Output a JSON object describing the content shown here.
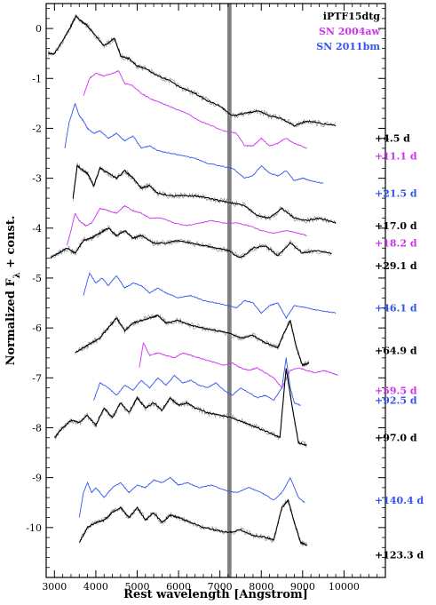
{
  "chart_data": {
    "type": "line",
    "xlabel": "Rest wavelength [Angstrom]",
    "ylabel": "Normalized F",
    "ylabel_sub": "λ",
    "ylabel_suffix": " + const.",
    "xlim": [
      2800,
      11000
    ],
    "ylim": [
      -11,
      0.5
    ],
    "x_ticks": [
      3000,
      4000,
      5000,
      6000,
      7000,
      8000,
      9000,
      10000
    ],
    "x_minor_step": 200,
    "y_ticks": [
      0,
      -1,
      -2,
      -3,
      -4,
      -5,
      -6,
      -7,
      -8,
      -9,
      -10
    ],
    "y_minor_step": 0.2,
    "grid": false,
    "shaded_band": {
      "x": [
        7180,
        7280
      ],
      "color": "#808080"
    },
    "legend_position": "top-right",
    "legend": [
      {
        "name": "iPTF15dtg",
        "color": "#000000"
      },
      {
        "name": "SN 2004aw",
        "color": "#cc33ee"
      },
      {
        "name": "SN 2011bm",
        "color": "#3355ee"
      }
    ],
    "series": [
      {
        "object": "iPTF15dtg",
        "epoch": "+4.5 d",
        "color": "#000000",
        "noisy": true,
        "x": [
          2850,
          3000,
          3200,
          3400,
          3520,
          3650,
          3800,
          4000,
          4200,
          4450,
          4600,
          4800,
          5000,
          5200,
          5500,
          5800,
          6100,
          6400,
          6700,
          7000,
          7300,
          7600,
          7900,
          8200,
          8500,
          8800,
          9100,
          9400,
          9800
        ],
        "y": [
          -0.5,
          -0.5,
          -0.25,
          0.05,
          0.25,
          0.15,
          0.05,
          -0.15,
          -0.35,
          -0.2,
          -0.55,
          -0.6,
          -0.75,
          -0.8,
          -0.95,
          -1.05,
          -1.2,
          -1.3,
          -1.45,
          -1.55,
          -1.75,
          -1.7,
          -1.65,
          -1.75,
          -1.8,
          -1.95,
          -1.85,
          -1.9,
          -1.95
        ],
        "label_y": -2.2
      },
      {
        "object": "SN 2004aw",
        "epoch": "+11.1 d",
        "color": "#cc33ee",
        "noisy": false,
        "x": [
          3700,
          3850,
          4000,
          4200,
          4400,
          4550,
          4700,
          4900,
          5100,
          5300,
          5600,
          5900,
          6200,
          6500,
          6800,
          7100,
          7400,
          7600,
          7800,
          8000,
          8200,
          8400,
          8600,
          8800,
          9100
        ],
        "y": [
          -1.35,
          -1.0,
          -0.9,
          -0.95,
          -0.9,
          -0.85,
          -1.1,
          -1.15,
          -1.3,
          -1.4,
          -1.5,
          -1.6,
          -1.7,
          -1.85,
          -1.95,
          -2.05,
          -2.1,
          -2.35,
          -2.35,
          -2.2,
          -2.35,
          -2.3,
          -2.2,
          -2.3,
          -2.4
        ],
        "label_y": -2.55
      },
      {
        "object": "SN 2011bm",
        "epoch": "+21.5 d",
        "color": "#3355ee",
        "noisy": false,
        "x": [
          3250,
          3350,
          3500,
          3600,
          3700,
          3800,
          3950,
          4100,
          4300,
          4500,
          4700,
          4900,
          5100,
          5300,
          5500,
          5800,
          6100,
          6400,
          6700,
          7000,
          7300,
          7600,
          7800,
          8000,
          8200,
          8400,
          8600,
          8800,
          9000,
          9200,
          9500
        ],
        "y": [
          -2.4,
          -1.9,
          -1.5,
          -1.75,
          -1.85,
          -2.0,
          -2.1,
          -2.05,
          -2.2,
          -2.1,
          -2.25,
          -2.15,
          -2.4,
          -2.35,
          -2.45,
          -2.5,
          -2.55,
          -2.6,
          -2.7,
          -2.75,
          -2.8,
          -3.0,
          -2.95,
          -2.75,
          -2.9,
          -2.95,
          -2.85,
          -3.05,
          -3.0,
          -3.05,
          -3.1
        ],
        "label_y": -3.3
      },
      {
        "object": "iPTF15dtg",
        "epoch": "+17.0 d",
        "color": "#000000",
        "noisy": true,
        "x": [
          3450,
          3550,
          3700,
          3800,
          3950,
          4100,
          4300,
          4500,
          4700,
          4900,
          5100,
          5300,
          5500,
          5800,
          6100,
          6400,
          6700,
          7000,
          7300,
          7600,
          7900,
          8200,
          8500,
          8800,
          9100,
          9400,
          9800
        ],
        "y": [
          -3.4,
          -2.75,
          -2.85,
          -2.9,
          -3.15,
          -2.8,
          -2.9,
          -3.0,
          -2.85,
          -3.0,
          -3.2,
          -3.15,
          -3.3,
          -3.35,
          -3.35,
          -3.35,
          -3.4,
          -3.45,
          -3.5,
          -3.55,
          -3.75,
          -3.8,
          -3.6,
          -3.8,
          -3.85,
          -3.8,
          -3.9
        ],
        "label_y": -3.95
      },
      {
        "object": "SN 2004aw",
        "epoch": "+18.2 d",
        "color": "#cc33ee",
        "noisy": false,
        "x": [
          3300,
          3400,
          3500,
          3600,
          3750,
          3900,
          4100,
          4300,
          4500,
          4700,
          4900,
          5100,
          5300,
          5600,
          5900,
          6200,
          6500,
          6800,
          7100,
          7400,
          7700,
          8000,
          8300,
          8600,
          8900,
          9100
        ],
        "y": [
          -4.35,
          -4.05,
          -3.7,
          -3.85,
          -3.95,
          -3.9,
          -3.6,
          -3.65,
          -3.7,
          -3.55,
          -3.65,
          -3.7,
          -3.8,
          -3.8,
          -3.9,
          -3.95,
          -3.9,
          -3.85,
          -3.9,
          -3.9,
          -3.95,
          -4.05,
          -4.1,
          -4.05,
          -4.1,
          -4.15
        ],
        "label_y": -4.3
      },
      {
        "object": "iPTF15dtg",
        "epoch": "+29.1 d",
        "color": "#000000",
        "noisy": true,
        "x": [
          2900,
          3100,
          3300,
          3500,
          3700,
          3900,
          4100,
          4300,
          4500,
          4700,
          4900,
          5100,
          5400,
          5700,
          6000,
          6300,
          6600,
          6900,
          7200,
          7500,
          7800,
          8100,
          8400,
          8700,
          9000,
          9300,
          9700
        ],
        "y": [
          -4.6,
          -4.5,
          -4.4,
          -4.5,
          -4.25,
          -4.2,
          -4.1,
          -4.0,
          -4.15,
          -4.05,
          -4.2,
          -4.15,
          -4.3,
          -4.3,
          -4.25,
          -4.3,
          -4.35,
          -4.4,
          -4.45,
          -4.6,
          -4.4,
          -4.35,
          -4.55,
          -4.3,
          -4.5,
          -4.45,
          -4.5
        ],
        "label_y": -4.75
      },
      {
        "object": "SN 2011bm",
        "epoch": "+46.1 d",
        "color": "#3355ee",
        "noisy": false,
        "x": [
          3700,
          3850,
          4000,
          4150,
          4300,
          4500,
          4700,
          4900,
          5100,
          5300,
          5500,
          5700,
          6000,
          6300,
          6600,
          6900,
          7200,
          7400,
          7600,
          7800,
          8000,
          8200,
          8400,
          8600,
          8800,
          9100,
          9400,
          9800
        ],
        "y": [
          -5.35,
          -4.9,
          -5.1,
          -5.0,
          -5.15,
          -4.95,
          -5.2,
          -5.1,
          -5.15,
          -5.3,
          -5.2,
          -5.3,
          -5.4,
          -5.35,
          -5.45,
          -5.5,
          -5.55,
          -5.6,
          -5.45,
          -5.5,
          -5.7,
          -5.55,
          -5.5,
          -5.8,
          -5.55,
          -5.6,
          -5.65,
          -5.7
        ],
        "label_y": -5.6
      },
      {
        "object": "iPTF15dtg",
        "epoch": "+64.9 d",
        "color": "#000000",
        "noisy": true,
        "x": [
          3500,
          3700,
          3900,
          4100,
          4300,
          4500,
          4700,
          4900,
          5100,
          5300,
          5500,
          5700,
          6000,
          6300,
          6600,
          6900,
          7200,
          7500,
          7800,
          8100,
          8400,
          8550,
          8700,
          8850,
          9000,
          9150
        ],
        "y": [
          -6.5,
          -6.4,
          -6.3,
          -6.2,
          -6.0,
          -5.8,
          -6.05,
          -5.9,
          -5.85,
          -5.8,
          -5.75,
          -5.9,
          -5.85,
          -5.95,
          -6.0,
          -6.05,
          -6.1,
          -6.2,
          -6.15,
          -6.3,
          -6.4,
          -6.1,
          -5.85,
          -6.4,
          -6.75,
          -6.7
        ],
        "label_y": -6.45
      },
      {
        "object": "SN 2004aw",
        "epoch": "+59.5 d",
        "color": "#cc33ee",
        "noisy": false,
        "x": [
          5050,
          5150,
          5300,
          5500,
          5700,
          5900,
          6100,
          6300,
          6500,
          6700,
          6900,
          7100,
          7300,
          7500,
          7700,
          7900,
          8100,
          8300,
          8500,
          8700,
          8900,
          9100,
          9300,
          9500,
          9700,
          9850
        ],
        "y": [
          -6.8,
          -6.3,
          -6.55,
          -6.5,
          -6.55,
          -6.6,
          -6.5,
          -6.55,
          -6.6,
          -6.65,
          -6.7,
          -6.75,
          -6.7,
          -6.8,
          -6.85,
          -6.8,
          -6.9,
          -7.0,
          -7.2,
          -6.85,
          -6.8,
          -6.85,
          -6.9,
          -6.85,
          -6.9,
          -6.95
        ],
        "label_y": -7.25
      },
      {
        "object": "SN 2011bm",
        "epoch": "+92.5 d",
        "color": "#3355ee",
        "noisy": false,
        "x": [
          3950,
          4100,
          4300,
          4500,
          4700,
          4900,
          5100,
          5300,
          5500,
          5700,
          5900,
          6100,
          6300,
          6500,
          6700,
          6900,
          7100,
          7300,
          7500,
          7700,
          7900,
          8100,
          8300,
          8500,
          8600,
          8700,
          8800,
          8950
        ],
        "y": [
          -7.45,
          -7.1,
          -7.2,
          -7.35,
          -7.15,
          -7.25,
          -7.05,
          -7.2,
          -7.0,
          -7.15,
          -6.95,
          -7.1,
          -7.05,
          -7.15,
          -7.2,
          -7.1,
          -7.25,
          -7.35,
          -7.2,
          -7.3,
          -7.4,
          -7.35,
          -7.45,
          -7.2,
          -6.6,
          -7.2,
          -7.5,
          -7.55
        ],
        "label_y": -7.45
      },
      {
        "object": "iPTF15dtg",
        "epoch": "+97.0 d",
        "color": "#000000",
        "noisy": true,
        "x": [
          3000,
          3200,
          3400,
          3600,
          3800,
          4000,
          4200,
          4400,
          4600,
          4800,
          5000,
          5200,
          5400,
          5600,
          5800,
          6000,
          6200,
          6400,
          6700,
          7000,
          7300,
          7600,
          7900,
          8200,
          8450,
          8600,
          8750,
          8900,
          9100
        ],
        "y": [
          -8.2,
          -8.0,
          -7.85,
          -7.9,
          -7.75,
          -7.95,
          -7.6,
          -7.8,
          -7.5,
          -7.7,
          -7.4,
          -7.6,
          -7.5,
          -7.65,
          -7.4,
          -7.55,
          -7.5,
          -7.6,
          -7.7,
          -7.75,
          -7.8,
          -7.9,
          -8.0,
          -8.1,
          -8.2,
          -6.8,
          -7.6,
          -8.3,
          -8.35
        ],
        "label_y": -8.2
      },
      {
        "object": "SN 2011bm",
        "epoch": "+140.4 d",
        "color": "#3355ee",
        "noisy": false,
        "x": [
          3600,
          3700,
          3800,
          3900,
          4000,
          4200,
          4400,
          4600,
          4800,
          5000,
          5200,
          5400,
          5600,
          5800,
          6000,
          6200,
          6500,
          6800,
          7100,
          7400,
          7700,
          8000,
          8300,
          8500,
          8700,
          8900,
          9050
        ],
        "y": [
          -9.8,
          -9.3,
          -9.1,
          -9.3,
          -9.2,
          -9.4,
          -9.2,
          -9.1,
          -9.3,
          -9.15,
          -9.2,
          -9.05,
          -9.1,
          -9.0,
          -9.15,
          -9.1,
          -9.2,
          -9.15,
          -9.25,
          -9.3,
          -9.2,
          -9.3,
          -9.45,
          -9.3,
          -9.0,
          -9.4,
          -9.5
        ],
        "label_y": -9.45
      },
      {
        "object": "iPTF15dtg",
        "epoch": "+123.3 d",
        "color": "#000000",
        "noisy": true,
        "x": [
          3600,
          3800,
          4000,
          4200,
          4400,
          4600,
          4800,
          5000,
          5200,
          5400,
          5600,
          5800,
          6000,
          6300,
          6600,
          6900,
          7200,
          7500,
          7800,
          8100,
          8300,
          8500,
          8650,
          8800,
          8950,
          9100
        ],
        "y": [
          -10.3,
          -10.0,
          -9.9,
          -9.85,
          -9.7,
          -9.6,
          -9.8,
          -9.6,
          -9.85,
          -9.7,
          -9.9,
          -9.75,
          -9.8,
          -9.9,
          -10.0,
          -10.05,
          -10.1,
          -10.05,
          -10.15,
          -10.2,
          -10.25,
          -9.6,
          -9.45,
          -9.9,
          -10.3,
          -10.35
        ],
        "label_y": -10.55
      }
    ]
  }
}
